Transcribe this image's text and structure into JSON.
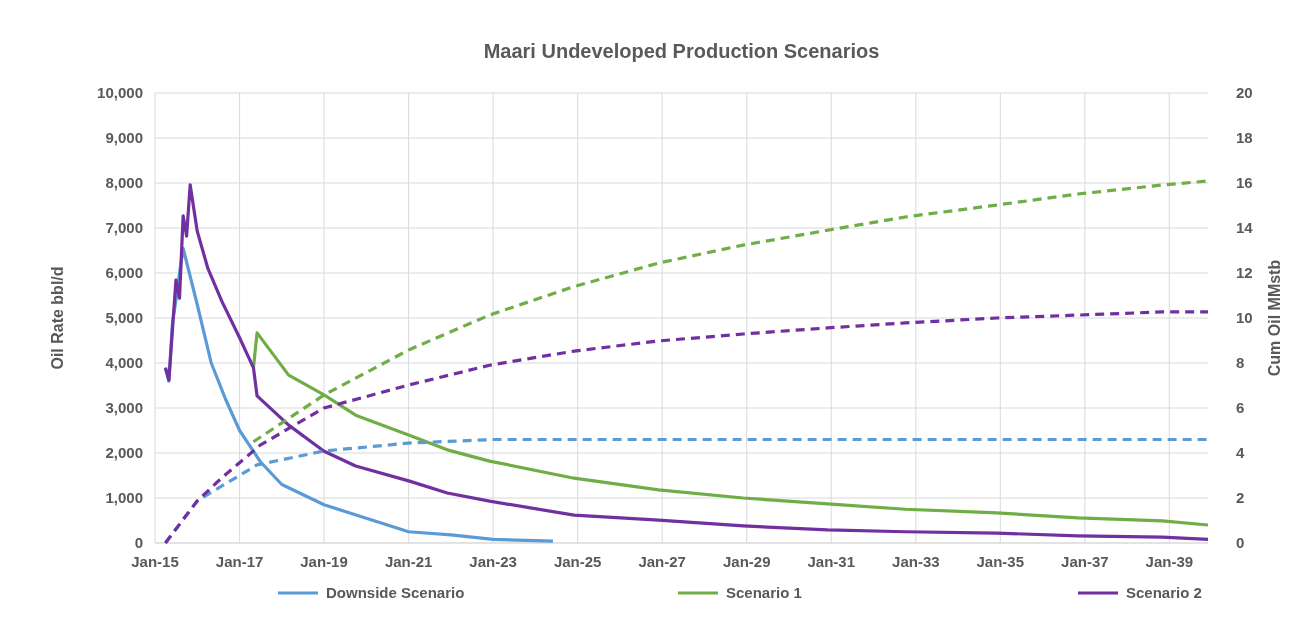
{
  "chart_data": {
    "type": "line",
    "title": "Maari Undeveloped Production Scenarios",
    "ylabel": "Oil Rate bbl/d",
    "y2label": "Cum Oil MMstb",
    "xlim": [
      "2015-01",
      "2039-12"
    ],
    "xticks": [
      {
        "value": "2015-01",
        "label": "Jan-15"
      },
      {
        "value": "2017-01",
        "label": "Jan-17"
      },
      {
        "value": "2019-01",
        "label": "Jan-19"
      },
      {
        "value": "2021-01",
        "label": "Jan-21"
      },
      {
        "value": "2023-01",
        "label": "Jan-23"
      },
      {
        "value": "2025-01",
        "label": "Jan-25"
      },
      {
        "value": "2027-01",
        "label": "Jan-27"
      },
      {
        "value": "2029-01",
        "label": "Jan-29"
      },
      {
        "value": "2031-01",
        "label": "Jan-31"
      },
      {
        "value": "2033-01",
        "label": "Jan-33"
      },
      {
        "value": "2035-01",
        "label": "Jan-35"
      },
      {
        "value": "2037-01",
        "label": "Jan-37"
      },
      {
        "value": "2039-01",
        "label": "Jan-39"
      }
    ],
    "ylim": [
      0,
      10000
    ],
    "yticks": [
      {
        "value": 0,
        "label": "0"
      },
      {
        "value": 1000,
        "label": "1,000"
      },
      {
        "value": 2000,
        "label": "2,000"
      },
      {
        "value": 3000,
        "label": "3,000"
      },
      {
        "value": 4000,
        "label": "4,000"
      },
      {
        "value": 5000,
        "label": "5,000"
      },
      {
        "value": 6000,
        "label": "6,000"
      },
      {
        "value": 7000,
        "label": "7,000"
      },
      {
        "value": 8000,
        "label": "8,000"
      },
      {
        "value": 9000,
        "label": "9,000"
      },
      {
        "value": 10000,
        "label": "10,000"
      }
    ],
    "y2lim": [
      0,
      20
    ],
    "y2ticks": [
      0,
      2,
      4,
      6,
      8,
      10,
      12,
      14,
      16,
      18,
      20
    ],
    "grid": true,
    "legend": "bottom",
    "series": [
      {
        "name": "Downside Scenario",
        "color": "#5b9bd5",
        "line_style": "solid",
        "x": [
          "2015-04",
          "2015-05",
          "2015-06",
          "2015-07",
          "2015-08",
          "2015-09",
          "2016-01",
          "2016-05",
          "2016-09",
          "2017-01",
          "2017-07",
          "2018-01",
          "2019-01",
          "2020-01",
          "2021-01",
          "2022-01",
          "2023-01",
          "2024-06"
        ],
        "values": [
          3900,
          3600,
          4900,
          5400,
          6000,
          6550,
          5300,
          4000,
          3200,
          2500,
          1800,
          1300,
          850,
          550,
          250,
          180,
          80,
          40
        ]
      },
      {
        "name": "Scenario 1",
        "color": "#70ad47",
        "line_style": "solid",
        "x": [
          "2017-05",
          "2017-06",
          "2018-03",
          "2019-01",
          "2019-10",
          "2021-01",
          "2021-12",
          "2022-12",
          "2024-12",
          "2026-12",
          "2028-12",
          "2030-12",
          "2032-10",
          "2034-12",
          "2036-11",
          "2038-11",
          "2039-12"
        ],
        "values": [
          3900,
          4670,
          3730,
          3290,
          2840,
          2400,
          2070,
          1820,
          1440,
          1180,
          1000,
          870,
          750,
          670,
          560,
          490,
          400
        ]
      },
      {
        "name": "Scenario 2",
        "color": "#7030a0",
        "line_style": "solid",
        "x": [
          "2015-04",
          "2015-05",
          "2015-07",
          "2015-08",
          "2015-09",
          "2015-10",
          "2015-11",
          "2016-01",
          "2016-04",
          "2016-08",
          "2017-01",
          "2017-05",
          "2017-06",
          "2018-03",
          "2019-01",
          "2019-10",
          "2021-01",
          "2021-12",
          "2022-12",
          "2024-12",
          "2026-12",
          "2028-12",
          "2030-12",
          "2032-10",
          "2034-12",
          "2036-11",
          "2038-11",
          "2039-12"
        ],
        "values": [
          3890,
          3620,
          5840,
          5440,
          7270,
          6820,
          7960,
          6930,
          6110,
          5370,
          4560,
          3890,
          3270,
          2620,
          2040,
          1710,
          1380,
          1110,
          930,
          620,
          510,
          380,
          290,
          250,
          220,
          160,
          130,
          80
        ]
      },
      {
        "color": "#5b9bd5",
        "axis": "y2",
        "line_style": "dashed",
        "x": [
          "2015-04",
          "2016-01",
          "2016-07",
          "2017-06",
          "2019-01",
          "2021-01",
          "2023-01",
          "2039-12"
        ],
        "values": [
          0,
          1.87,
          2.44,
          3.47,
          4.09,
          4.44,
          4.6,
          4.6
        ]
      },
      {
        "color": "#70ad47",
        "axis": "y2",
        "line_style": "dashed",
        "x": [
          "2017-05",
          "2019-01",
          "2021-01",
          "2022-12",
          "2024-12",
          "2026-12",
          "2028-12",
          "2030-12",
          "2032-10",
          "2034-12",
          "2036-11",
          "2038-11",
          "2039-12"
        ],
        "values": [
          4.5,
          6.58,
          8.58,
          10.13,
          11.4,
          12.44,
          13.24,
          13.9,
          14.49,
          15.02,
          15.51,
          15.91,
          16.09
        ]
      },
      {
        "color": "#7030a0",
        "axis": "y2",
        "line_style": "dashed",
        "x": [
          "2015-04",
          "2016-01",
          "2016-08",
          "2017-07",
          "2019-01",
          "2021-01",
          "2022-12",
          "2024-12",
          "2026-12",
          "2028-12",
          "2030-12",
          "2032-10",
          "2034-12",
          "2036-11",
          "2038-11",
          "2039-12"
        ],
        "values": [
          0,
          1.87,
          2.9,
          4.36,
          6.0,
          7.02,
          7.9,
          8.53,
          8.98,
          9.29,
          9.56,
          9.78,
          10.0,
          10.13,
          10.27,
          10.27
        ]
      }
    ]
  }
}
